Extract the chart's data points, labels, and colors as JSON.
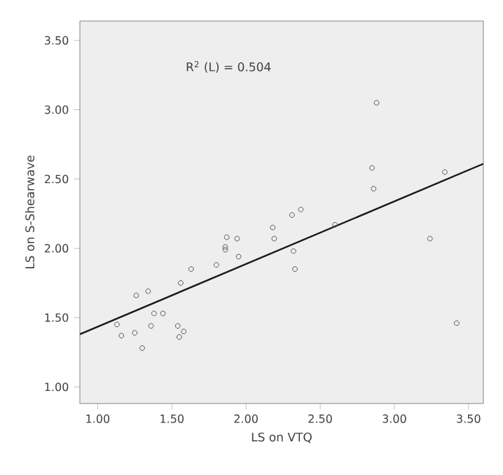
{
  "chart_data": {
    "type": "scatter",
    "xlabel": "LS on VTQ",
    "ylabel": "LS on S-Shearwave",
    "annotations": [
      "R$^{2}$ (L) = 0.504"
    ],
    "series": [
      {
        "color": "#555555",
        "marker": "circle",
        "x": [
          1.13,
          1.16,
          1.25,
          1.26,
          1.3,
          1.34,
          1.36,
          1.38,
          1.44,
          1.54,
          1.55,
          1.58,
          1.56,
          1.63,
          1.8,
          1.86,
          1.86,
          1.87,
          1.94,
          1.95,
          2.18,
          2.19,
          2.31,
          2.37,
          2.32,
          2.33,
          2.6,
          2.85,
          2.86,
          2.88,
          3.24,
          3.34,
          3.42
        ],
        "values": [
          1.45,
          1.37,
          1.39,
          1.66,
          1.28,
          1.69,
          1.44,
          1.53,
          1.53,
          1.44,
          1.36,
          1.4,
          1.75,
          1.85,
          1.88,
          2.01,
          1.99,
          2.08,
          2.07,
          1.94,
          2.15,
          2.07,
          2.24,
          2.28,
          1.98,
          1.85,
          2.17,
          2.58,
          2.43,
          3.05,
          2.07,
          2.55,
          1.46
        ]
      },
      {
        "type": "line",
        "color": "#1a1a1a",
        "marker": "none",
        "x": [
          0.88,
          3.6
        ],
        "values": [
          1.38,
          2.61
        ]
      }
    ],
    "xlim": [
      0.88,
      3.6
    ],
    "ylim": [
      0.88,
      3.64
    ],
    "xticks": [
      {
        "value": 1,
        "label": "1.00"
      },
      {
        "value": 1.5,
        "label": "1.50"
      },
      {
        "value": 2,
        "label": "2.00"
      },
      {
        "value": 2.5,
        "label": "2.50"
      },
      {
        "value": 3,
        "label": "3.00"
      },
      {
        "value": 3.5,
        "label": "3.50"
      }
    ],
    "yticks": [
      {
        "value": 1,
        "label": "1.00"
      },
      {
        "value": 1.5,
        "label": "1.50"
      },
      {
        "value": 2,
        "label": "2.00"
      },
      {
        "value": 2.5,
        "label": "2.50"
      },
      {
        "value": 3,
        "label": "3.00"
      },
      {
        "value": 3.5,
        "label": "3.50"
      }
    ],
    "grid": false
  }
}
